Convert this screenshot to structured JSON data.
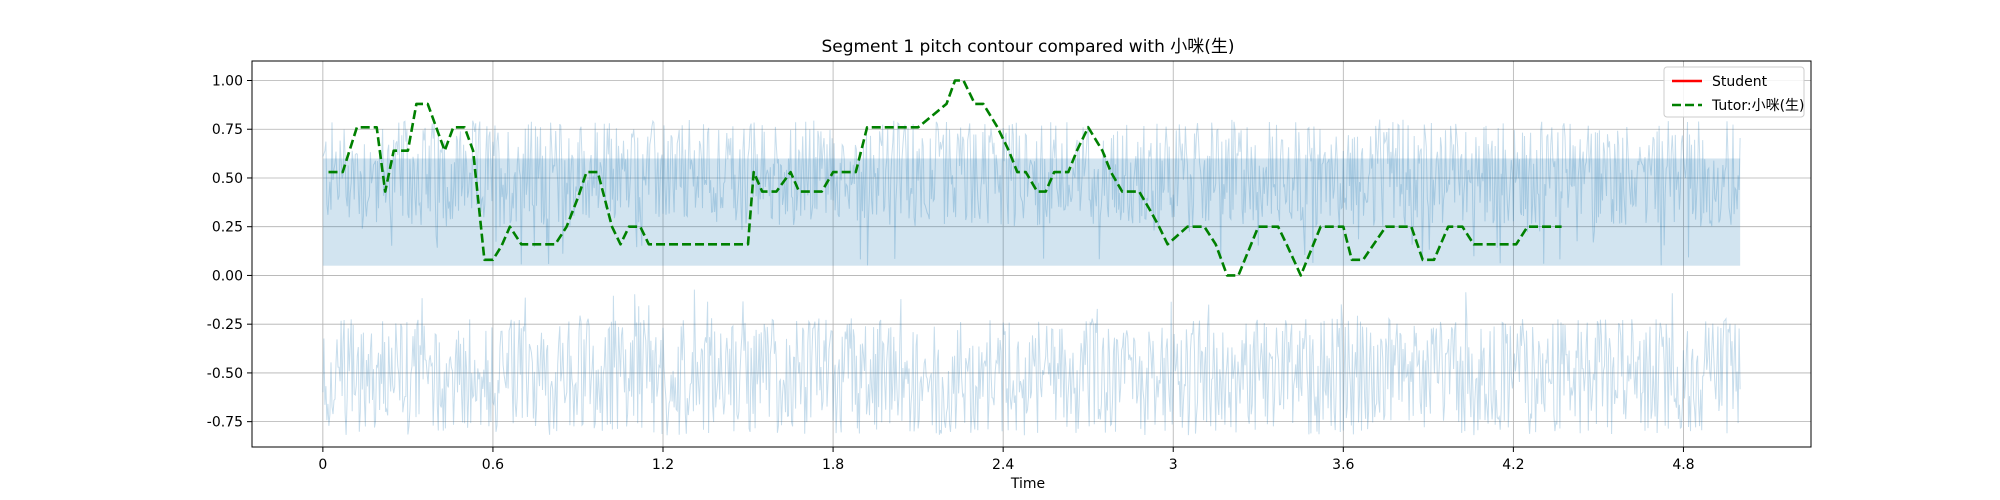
{
  "chart_data": {
    "type": "line",
    "title": "Segment 1 pitch contour compared with 小咪(生)",
    "xlabel": "Time",
    "ylabel": "",
    "xlim": [
      -0.25,
      5.25
    ],
    "ylim": [
      -0.88,
      1.1
    ],
    "grid": true,
    "legend_position": "top-right",
    "x_ticks": [
      0,
      0.6,
      1.2,
      1.8,
      2.4,
      3,
      3.6,
      4.2,
      4.8
    ],
    "x_tick_labels": [
      "0",
      "0.6",
      "1.2",
      "1.8",
      "2.4",
      "3",
      "3.6",
      "4.2",
      "4.8"
    ],
    "y_ticks": [
      1.0,
      0.75,
      0.5,
      0.25,
      0.0,
      -0.25,
      -0.5,
      -0.75
    ],
    "y_tick_labels": [
      "1.00",
      "0.75",
      "0.50",
      "0.25",
      "0.00",
      "-0.25",
      "-0.50",
      "-0.75"
    ],
    "waveform": {
      "x_range": [
        0,
        5.0
      ],
      "core_range": [
        0.05,
        0.6
      ],
      "peak_range": [
        -0.82,
        0.8
      ],
      "color": "#1f77b4"
    },
    "series": [
      {
        "name": "Student",
        "color": "#ff0000",
        "style": "solid",
        "x": [],
        "y": []
      },
      {
        "name": "Tutor:小咪(生)",
        "color": "#008000",
        "style": "dashed",
        "x": [
          0.02,
          0.07,
          0.12,
          0.19,
          0.22,
          0.25,
          0.3,
          0.33,
          0.37,
          0.4,
          0.43,
          0.46,
          0.5,
          0.53,
          0.57,
          0.6,
          0.63,
          0.66,
          0.7,
          0.75,
          0.82,
          0.86,
          0.9,
          0.93,
          0.97,
          1.02,
          1.05,
          1.08,
          1.12,
          1.15,
          1.2,
          1.3,
          1.4,
          1.5,
          1.52,
          1.55,
          1.6,
          1.65,
          1.68,
          1.72,
          1.76,
          1.8,
          1.83,
          1.88,
          1.92,
          1.97,
          2.1,
          2.2,
          2.23,
          2.26,
          2.3,
          2.33,
          2.38,
          2.42,
          2.45,
          2.48,
          2.52,
          2.55,
          2.58,
          2.6,
          2.63,
          2.66,
          2.7,
          2.75,
          2.78,
          2.82,
          2.85,
          2.88,
          2.92,
          2.95,
          2.98,
          3.05,
          3.08,
          3.11,
          3.15,
          3.19,
          3.23,
          3.3,
          3.33,
          3.37,
          3.4,
          3.45,
          3.52,
          3.56,
          3.6,
          3.63,
          3.67,
          3.75,
          3.8,
          3.84,
          3.88,
          3.92,
          3.97,
          4.02,
          4.06,
          4.09,
          4.13,
          4.17,
          4.21,
          4.25,
          4.3,
          4.33,
          4.37
        ],
        "y": [
          0.53,
          0.53,
          0.76,
          0.76,
          0.43,
          0.64,
          0.64,
          0.88,
          0.88,
          0.76,
          0.64,
          0.76,
          0.76,
          0.64,
          0.08,
          0.08,
          0.15,
          0.25,
          0.16,
          0.16,
          0.16,
          0.25,
          0.4,
          0.53,
          0.53,
          0.25,
          0.16,
          0.25,
          0.25,
          0.16,
          0.16,
          0.16,
          0.16,
          0.16,
          0.53,
          0.43,
          0.43,
          0.53,
          0.43,
          0.43,
          0.43,
          0.53,
          0.53,
          0.53,
          0.76,
          0.76,
          0.76,
          0.88,
          1.0,
          1.0,
          0.88,
          0.88,
          0.76,
          0.64,
          0.53,
          0.53,
          0.43,
          0.43,
          0.53,
          0.53,
          0.53,
          0.64,
          0.76,
          0.64,
          0.53,
          0.43,
          0.43,
          0.43,
          0.33,
          0.25,
          0.16,
          0.25,
          0.25,
          0.25,
          0.16,
          0.0,
          0.0,
          0.25,
          0.25,
          0.25,
          0.16,
          0.0,
          0.25,
          0.25,
          0.25,
          0.08,
          0.08,
          0.25,
          0.25,
          0.25,
          0.08,
          0.08,
          0.25,
          0.25,
          0.16,
          0.16,
          0.16,
          0.16,
          0.16,
          0.25,
          0.25,
          0.25,
          0.25
        ]
      }
    ]
  }
}
